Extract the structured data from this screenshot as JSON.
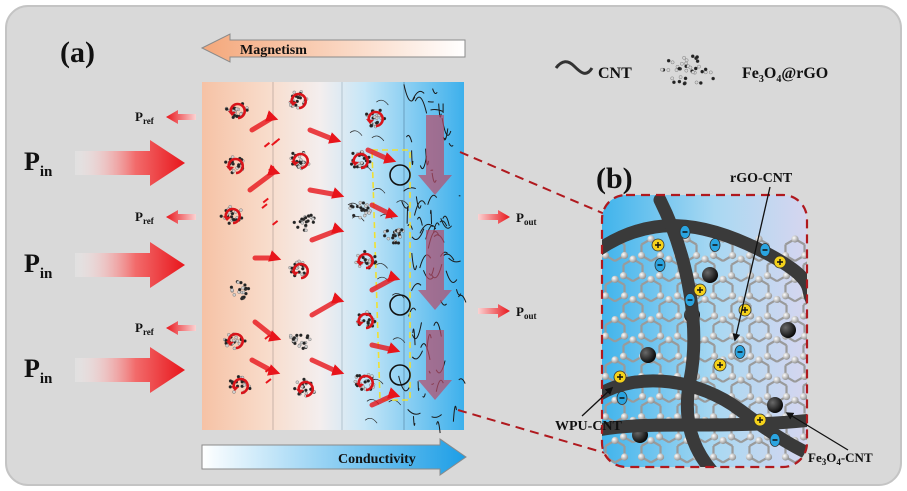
{
  "panel_a": {
    "label": "(a)",
    "magnetism_arrow_label": "Magnetism",
    "conductivity_arrow_label": "Conductivity",
    "incident": [
      {
        "main": "P",
        "sub": "in"
      },
      {
        "main": "P",
        "sub": "in"
      },
      {
        "main": "P",
        "sub": "in"
      }
    ],
    "reflected": [
      {
        "main": "P",
        "sub": "ref"
      },
      {
        "main": "P",
        "sub": "ref"
      },
      {
        "main": "P",
        "sub": "ref"
      }
    ],
    "transmitted": [
      {
        "main": "P",
        "sub": "out"
      },
      {
        "main": "P",
        "sub": "out"
      }
    ]
  },
  "legend": {
    "cnt_label": "CNT",
    "fe3o4_label": {
      "part1": "Fe",
      "sub1": "3",
      "part2": "O",
      "sub2": "4",
      "part3": "@rGO"
    }
  },
  "panel_b": {
    "label": "(b)",
    "rgo_cnt_label": "rGO-CNT",
    "wpu_cnt_label": "WPU-CNT",
    "fe3o4_cnt_label": {
      "part1": "Fe",
      "sub1": "3",
      "part2": "O",
      "sub2": "4",
      "part3": "-CNT"
    }
  },
  "colors": {
    "background": "#d9d9d9",
    "incident_arrow": "#e8151b",
    "dashed_connector": "#b0191e",
    "conductivity_blue": "#1c9ee6",
    "magnetism_orange": "#f4b48a",
    "charge_positive": "#f5d21a",
    "charge_negative": "#2aa4e0"
  }
}
